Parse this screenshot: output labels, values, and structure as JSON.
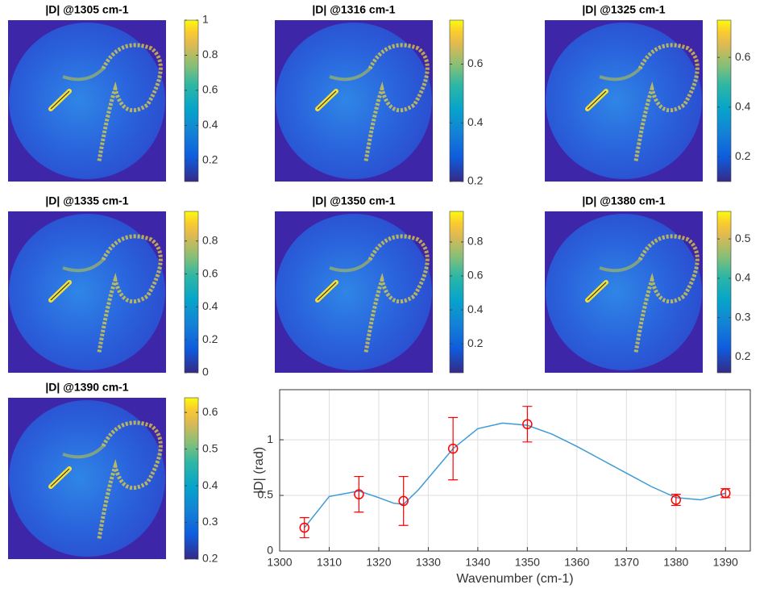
{
  "chart_data": [
    {
      "type": "heatmap",
      "title": "|D| @1305 cm-1",
      "clim": [
        0.08,
        1.0
      ],
      "cticks": [
        0.2,
        0.4,
        0.6,
        0.8,
        1
      ]
    },
    {
      "type": "heatmap",
      "title": "|D| @1316 cm-1",
      "clim": [
        0.2,
        0.75
      ],
      "cticks": [
        0.2,
        0.4,
        0.6
      ]
    },
    {
      "type": "heatmap",
      "title": "|D| @1325 cm-1",
      "clim": [
        0.1,
        0.75
      ],
      "cticks": [
        0.2,
        0.4,
        0.6
      ]
    },
    {
      "type": "heatmap",
      "title": "|D| @1335 cm-1",
      "clim": [
        0,
        0.98
      ],
      "cticks": [
        0,
        0.2,
        0.4,
        0.6,
        0.8
      ]
    },
    {
      "type": "heatmap",
      "title": "|D| @1350 cm-1",
      "clim": [
        0.03,
        0.98
      ],
      "cticks": [
        0.2,
        0.4,
        0.6,
        0.8
      ]
    },
    {
      "type": "heatmap",
      "title": "|D| @1380 cm-1",
      "clim": [
        0.16,
        0.57
      ],
      "cticks": [
        0.2,
        0.3,
        0.4,
        0.5
      ]
    },
    {
      "type": "heatmap",
      "title": "|D| @1390 cm-1",
      "clim": [
        0.2,
        0.64
      ],
      "cticks": [
        0.2,
        0.3,
        0.4,
        0.5,
        0.6
      ]
    },
    {
      "type": "line",
      "xlabel": "Wavenumber (cm-1)",
      "ylabel": "|D| (rad)",
      "xlim": [
        1300,
        1395
      ],
      "xticks": [
        1300,
        1310,
        1320,
        1330,
        1340,
        1350,
        1360,
        1370,
        1380,
        1390
      ],
      "ylim": [
        0,
        1.45
      ],
      "yticks": [
        0,
        0.5,
        1
      ],
      "grid": true,
      "series": [
        {
          "color": "#3c9bd6",
          "x": [
            1305,
            1310,
            1316,
            1320,
            1323,
            1325,
            1328,
            1335,
            1340,
            1345,
            1350,
            1355,
            1360,
            1365,
            1370,
            1375,
            1380,
            1385,
            1390
          ],
          "values": [
            0.21,
            0.49,
            0.54,
            0.48,
            0.43,
            0.42,
            0.55,
            0.92,
            1.1,
            1.15,
            1.13,
            1.05,
            0.94,
            0.82,
            0.7,
            0.58,
            0.48,
            0.46,
            0.52
          ]
        },
        {
          "color": "#ff0000",
          "marker": "circle",
          "x": [
            1305,
            1316,
            1325,
            1335,
            1350,
            1380,
            1390
          ],
          "values": [
            0.21,
            0.51,
            0.45,
            0.92,
            1.14,
            0.46,
            0.52
          ],
          "errors": [
            0.09,
            0.16,
            0.22,
            0.28,
            0.16,
            0.05,
            0.04
          ]
        }
      ]
    }
  ]
}
